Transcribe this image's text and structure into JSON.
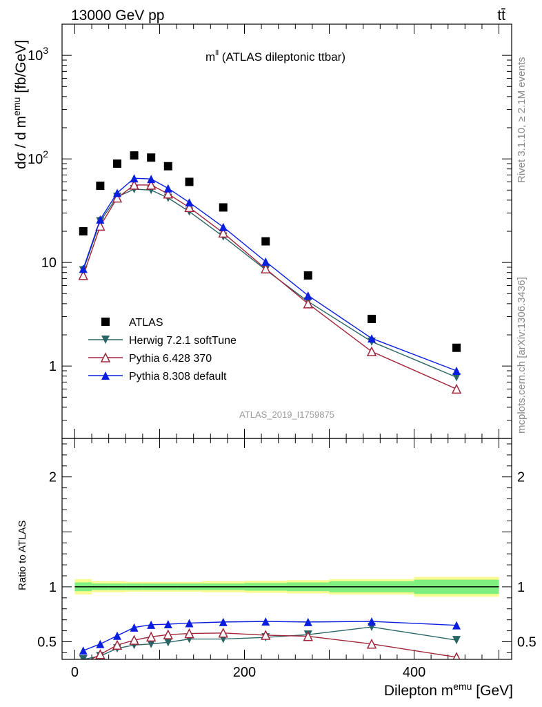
{
  "header": {
    "left": "13000 GeV pp",
    "right": "tt̄"
  },
  "side_labels": {
    "rivet": "Rivet 3.1.10, ≥ 2.1M events",
    "mcplots": "mcplots.cern.ch [arXiv:1306.3436]"
  },
  "plot_title_main": "m",
  "plot_title_sup": "ll",
  "plot_title_rest": " (ATLAS dileptonic ttbar)",
  "watermark": "ATLAS_2019_I1759875",
  "ylabel_main": {
    "pre": "dσ / d m",
    "sup": "emu",
    "post": " [fb/GeV]"
  },
  "ylabel_ratio": "Ratio to ATLAS",
  "xlabel": {
    "pre": "Dilepton m",
    "sup": "emu",
    "post": " [GeV]"
  },
  "colors": {
    "atlas": "#000000",
    "herwig": "#2a6565",
    "pythia6": "#a0243a",
    "pythia8": "#0a1ee0",
    "band_inner": "#7ff07f",
    "band_outer": "#fafa90"
  },
  "chart_data": [
    {
      "type": "scatter",
      "panel": "main",
      "x_bins": [
        [
          0,
          20
        ],
        [
          20,
          40
        ],
        [
          40,
          60
        ],
        [
          60,
          80
        ],
        [
          80,
          100
        ],
        [
          100,
          120
        ],
        [
          120,
          150
        ],
        [
          150,
          200
        ],
        [
          200,
          250
        ],
        [
          250,
          300
        ],
        [
          300,
          400
        ],
        [
          400,
          500
        ]
      ],
      "x": [
        10,
        30,
        50,
        70,
        90,
        110,
        135,
        175,
        225,
        275,
        350,
        450
      ],
      "ylim": [
        0.2,
        2000
      ],
      "xlim": [
        -15,
        515
      ],
      "yscale": "log",
      "y_ticks": [
        {
          "v": 1,
          "l": "1"
        },
        {
          "v": 10,
          "l": "10"
        },
        {
          "v": 100,
          "l": "10",
          "sup": "2"
        },
        {
          "v": 1000,
          "l": "10",
          "sup": "3"
        }
      ],
      "series": [
        {
          "name": "ATLAS",
          "key": "atlas",
          "marker": "square",
          "values": [
            20,
            55,
            90,
            108,
            103,
            85,
            60,
            34,
            16,
            7.5,
            2.85,
            1.5
          ]
        },
        {
          "name": "Herwig 7.2.1 softTune",
          "key": "herwig",
          "marker": "triangle-down",
          "values": [
            8.4,
            25,
            43,
            51,
            50,
            42,
            31,
            17.8,
            8.5,
            4.2,
            1.72,
            0.78
          ]
        },
        {
          "name": "Pythia 6.428 370",
          "key": "pythia6",
          "marker": "triangle-up-open",
          "values": [
            7.5,
            22.5,
            42,
            56,
            56,
            46,
            34,
            19.3,
            8.7,
            4.0,
            1.38,
            0.6
          ]
        },
        {
          "name": "Pythia 8.308 default",
          "key": "pythia8",
          "marker": "triangle-up",
          "values": [
            8.7,
            26,
            47,
            65,
            64,
            52,
            38,
            22,
            10.2,
            4.8,
            1.85,
            0.9
          ]
        }
      ]
    },
    {
      "type": "line",
      "panel": "ratio",
      "x": [
        10,
        30,
        50,
        70,
        90,
        110,
        135,
        175,
        225,
        275,
        350,
        450
      ],
      "ylim": [
        0.34,
        2.35
      ],
      "xlim": [
        -15,
        515
      ],
      "y_ticks": [
        {
          "v": 0.5,
          "l": "0.5"
        },
        {
          "v": 1,
          "l": "1"
        },
        {
          "v": 2,
          "l": "2"
        }
      ],
      "x_ticks": [
        {
          "v": 0,
          "l": "0"
        },
        {
          "v": 200,
          "l": "200"
        },
        {
          "v": 400,
          "l": "400"
        }
      ],
      "band": {
        "edges": [
          0,
          20,
          40,
          60,
          80,
          100,
          120,
          150,
          200,
          250,
          300,
          400,
          500
        ],
        "inner": [
          0.04,
          0.03,
          0.03,
          0.03,
          0.03,
          0.03,
          0.03,
          0.03,
          0.035,
          0.04,
          0.05,
          0.065
        ],
        "outer": [
          0.07,
          0.05,
          0.05,
          0.045,
          0.045,
          0.045,
          0.045,
          0.05,
          0.055,
          0.06,
          0.07,
          0.09
        ]
      },
      "series": [
        {
          "name": "Herwig 7.2.1 softTune",
          "key": "herwig",
          "marker": "triangle-down",
          "values": [
            0.34,
            0.37,
            0.44,
            0.47,
            0.48,
            0.495,
            0.525,
            0.525,
            0.54,
            0.565,
            0.635,
            0.515
          ]
        },
        {
          "name": "Pythia 6.428 370",
          "key": "pythia6",
          "marker": "triangle-up-open",
          "values": [
            0.3,
            0.385,
            0.47,
            0.515,
            0.545,
            0.565,
            0.575,
            0.58,
            0.56,
            0.55,
            0.48,
            0.36
          ]
        },
        {
          "name": "Pythia 8.308 default",
          "key": "pythia8",
          "marker": "triangle-up",
          "values": [
            0.42,
            0.48,
            0.555,
            0.63,
            0.655,
            0.66,
            0.67,
            0.68,
            0.685,
            0.68,
            0.685,
            0.65
          ]
        }
      ]
    }
  ]
}
